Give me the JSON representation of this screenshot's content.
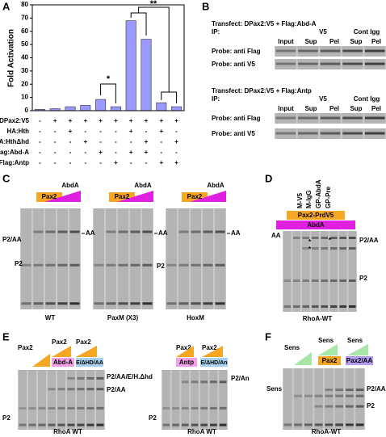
{
  "chart_data": {
    "type": "bar",
    "panel_label": "A",
    "y_label": "Fold Activation",
    "ylim": [
      0,
      80
    ],
    "yticks": [
      0,
      10,
      20,
      30,
      40,
      50,
      60,
      70,
      80
    ],
    "values": [
      1,
      1.5,
      3,
      4,
      8.5,
      3,
      68,
      54,
      6,
      3
    ],
    "color": "#9999ff",
    "conditions": [
      {
        "name": "DPax2:V5",
        "signs": [
          "-",
          "+",
          "+",
          "+",
          "+",
          "+",
          "+",
          "+",
          "+",
          "+"
        ]
      },
      {
        "name": "HA:Hth",
        "signs": [
          "-",
          "-",
          "+",
          "-",
          "-",
          "-",
          "+",
          "-",
          "+",
          "-"
        ]
      },
      {
        "name": "HA:HthΔhd",
        "signs": [
          "-",
          "-",
          "-",
          "+",
          "-",
          "-",
          "-",
          "+",
          "-",
          "+"
        ]
      },
      {
        "name": "Flag:Abd-A",
        "signs": [
          "-",
          "-",
          "-",
          "-",
          "+",
          "-",
          "+",
          "+",
          "-",
          "-"
        ]
      },
      {
        "name": "Flag:Antp",
        "signs": [
          "-",
          "-",
          "-",
          "-",
          "-",
          "+",
          "-",
          "-",
          "+",
          "+"
        ]
      }
    ],
    "annotations": [
      "*",
      "**"
    ]
  },
  "panel_b": {
    "label": "B",
    "blots": [
      {
        "transfect": "Transfect: DPax2:V5 + Flag:Abd-A",
        "ip": "IP:",
        "ip_groups": [
          "V5",
          "Cont Igg"
        ],
        "lanes": [
          "Input",
          "Sup",
          "Pel",
          "Sup",
          "Pel"
        ],
        "probes": [
          "Probe: anti Flag",
          "Probe: anti V5"
        ]
      },
      {
        "transfect": "Transfect: DPax2:V5 + Flag:Antp",
        "ip": "IP:",
        "ip_groups": [
          "V5",
          "Cont Igg"
        ],
        "lanes": [
          "Input",
          "Sup",
          "Pel",
          "Sup",
          "Pel"
        ],
        "probes": [
          "Probe: anti Flag",
          "Probe: anti V5"
        ]
      }
    ]
  },
  "panel_c": {
    "label": "C",
    "gels": [
      {
        "titrant": "AbdA",
        "protein": "Pax2",
        "bands_left": [
          "P2/AA",
          "P2"
        ],
        "bands_right": [
          "AA"
        ],
        "caption": "WT"
      },
      {
        "titrant": "AbdA",
        "protein": "Pax2",
        "bands_right": [
          "AA"
        ],
        "caption": "PaxM (X3)"
      },
      {
        "titrant": "AbdA",
        "protein": "Pax2",
        "bands_left": [
          "P2"
        ],
        "bands_right": [
          "AA"
        ],
        "caption": "HoxM"
      }
    ]
  },
  "panel_d": {
    "label": "D",
    "lanes": [
      "M-V5",
      "M-IgG",
      "GP-AbdA",
      "GP-Pre"
    ],
    "protein": "Pax2-PrdV5",
    "titrant": "AbdA",
    "bands_left": [
      "AA"
    ],
    "bands_right": [
      "P2/AA",
      "P2"
    ],
    "marks": [
      "*",
      "*",
      "*"
    ],
    "caption": "RhoA-WT"
  },
  "panel_e": {
    "label": "E",
    "gels": [
      {
        "titrations": [
          "Pax2",
          "Pax2",
          "Pax2"
        ],
        "partners": [
          "Abd-A",
          "E/ΔHD/AA"
        ],
        "bands_left": [
          "P2"
        ],
        "bands_right": [
          "P2/AA/E/H.Δhd",
          "P2/AA"
        ],
        "caption": "RhoA WT"
      },
      {
        "titrations": [
          "Pax2",
          "Pax2"
        ],
        "partners": [
          "Antp",
          "E/ΔHD/An"
        ],
        "bands_left": [
          "P2"
        ],
        "bands_right": [
          "P2/An"
        ],
        "caption": "RhoA WT"
      }
    ]
  },
  "panel_f": {
    "label": "F",
    "titrations": [
      "Sens",
      "Sens",
      "Sens"
    ],
    "partners": [
      "Pax2",
      "Pax2/AA"
    ],
    "bands_left": [
      "Sens"
    ],
    "bands_right": [
      "P2/AA",
      "P2"
    ],
    "caption": "RhoA-WT"
  }
}
